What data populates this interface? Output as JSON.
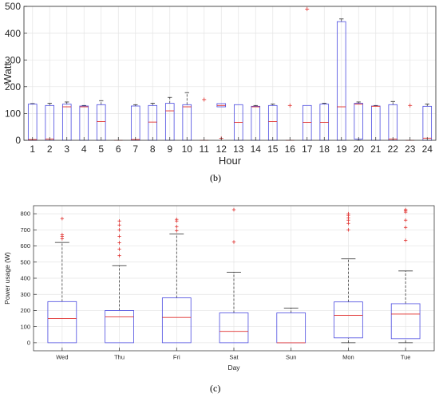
{
  "colors": {
    "box": "#4a4ae0",
    "median": "#e0302e",
    "whisker": "#222222",
    "outlier": "#e0302e",
    "grid": "#e4e4e4",
    "axis": "#262626"
  },
  "panel_b": {
    "label": "(b)"
  },
  "panel_c": {
    "label": "(c)"
  },
  "chart_data": [
    {
      "type": "box",
      "xlabel": "Hour",
      "ylabel": "Watt",
      "ylim": [
        0,
        500
      ],
      "yticks": [
        0,
        100,
        200,
        300,
        400,
        500
      ],
      "grid": true,
      "categories": [
        "1",
        "2",
        "3",
        "4",
        "5",
        "6",
        "7",
        "8",
        "9",
        "10",
        "11",
        "12",
        "13",
        "14",
        "15",
        "16",
        "17",
        "18",
        "19",
        "20",
        "21",
        "22",
        "23",
        "24"
      ],
      "boxes": [
        {
          "q1": 0,
          "median": 3,
          "q3": 135,
          "whisker_low": 0,
          "whisker_high": 137,
          "outliers": []
        },
        {
          "q1": 0,
          "median": 5,
          "q3": 130,
          "whisker_low": 0,
          "whisker_high": 138,
          "outliers": []
        },
        {
          "q1": 0,
          "median": 125,
          "q3": 135,
          "whisker_low": 0,
          "whisker_high": 143,
          "outliers": []
        },
        {
          "q1": 0,
          "median": 125,
          "q3": 128,
          "whisker_low": 0,
          "whisker_high": 130,
          "outliers": []
        },
        {
          "q1": 0,
          "median": 70,
          "q3": 133,
          "whisker_low": 0,
          "whisker_high": 148,
          "outliers": []
        },
        {
          "q1": 0,
          "median": 0,
          "q3": 0,
          "whisker_low": 0,
          "whisker_high": 0,
          "outliers": []
        },
        {
          "q1": 0,
          "median": 3,
          "q3": 128,
          "whisker_low": 0,
          "whisker_high": 133,
          "outliers": []
        },
        {
          "q1": 0,
          "median": 68,
          "q3": 130,
          "whisker_low": 0,
          "whisker_high": 138,
          "outliers": []
        },
        {
          "q1": 0,
          "median": 110,
          "q3": 138,
          "whisker_low": 0,
          "whisker_high": 160,
          "outliers": []
        },
        {
          "q1": 0,
          "median": 125,
          "q3": 133,
          "whisker_low": 0,
          "whisker_high": 178,
          "outliers": []
        },
        {
          "q1": 0,
          "median": 0,
          "q3": 0,
          "whisker_low": 0,
          "whisker_high": 0,
          "outliers": [
            152
          ]
        },
        {
          "q1": 125,
          "median": 130,
          "q3": 137,
          "whisker_low": 125,
          "whisker_high": 137,
          "outliers": [
            7
          ]
        },
        {
          "q1": 0,
          "median": 67,
          "q3": 133,
          "whisker_low": 0,
          "whisker_high": 133,
          "outliers": []
        },
        {
          "q1": 0,
          "median": 125,
          "q3": 127,
          "whisker_low": 0,
          "whisker_high": 130,
          "outliers": []
        },
        {
          "q1": 0,
          "median": 70,
          "q3": 130,
          "whisker_low": 0,
          "whisker_high": 135,
          "outliers": []
        },
        {
          "q1": 0,
          "median": 0,
          "q3": 0,
          "whisker_low": 0,
          "whisker_high": 0,
          "outliers": [
            130
          ]
        },
        {
          "q1": 0,
          "median": 67,
          "q3": 130,
          "whisker_low": 0,
          "whisker_high": 130,
          "outliers": [
            490
          ]
        },
        {
          "q1": 0,
          "median": 67,
          "q3": 135,
          "whisker_low": 0,
          "whisker_high": 138,
          "outliers": []
        },
        {
          "q1": 0,
          "median": 125,
          "q3": 443,
          "whisker_low": 0,
          "whisker_high": 453,
          "outliers": []
        },
        {
          "q1": 5,
          "median": 135,
          "q3": 138,
          "whisker_low": 0,
          "whisker_high": 143,
          "outliers": []
        },
        {
          "q1": 0,
          "median": 127,
          "q3": 128,
          "whisker_low": 0,
          "whisker_high": 130,
          "outliers": []
        },
        {
          "q1": 0,
          "median": 5,
          "q3": 133,
          "whisker_low": 0,
          "whisker_high": 145,
          "outliers": []
        },
        {
          "q1": 0,
          "median": 0,
          "q3": 0,
          "whisker_low": 0,
          "whisker_high": 0,
          "outliers": [
            130
          ]
        },
        {
          "q1": 0,
          "median": 8,
          "q3": 127,
          "whisker_low": 0,
          "whisker_high": 135,
          "outliers": []
        }
      ]
    },
    {
      "type": "box",
      "xlabel": "Day",
      "ylabel": "Power usage (W)",
      "ylim": [
        -50,
        850
      ],
      "yticks": [
        0,
        100,
        200,
        300,
        400,
        500,
        600,
        700,
        800
      ],
      "grid": true,
      "categories": [
        "Wed",
        "Thu",
        "Fri",
        "Sat",
        "Sun",
        "Mon",
        "Tue"
      ],
      "boxes": [
        {
          "q1": 0,
          "median": 150,
          "q3": 255,
          "whisker_low": 0,
          "whisker_high": 622,
          "outliers": [
            645,
            660,
            670,
            770
          ]
        },
        {
          "q1": 0,
          "median": 160,
          "q3": 200,
          "whisker_low": 0,
          "whisker_high": 478,
          "outliers": [
            540,
            580,
            620,
            660,
            700,
            730,
            755
          ]
        },
        {
          "q1": 0,
          "median": 157,
          "q3": 278,
          "whisker_low": 0,
          "whisker_high": 675,
          "outliers": [
            695,
            720,
            755,
            765
          ]
        },
        {
          "q1": 0,
          "median": 70,
          "q3": 185,
          "whisker_low": 0,
          "whisker_high": 437,
          "outliers": [
            625,
            825
          ]
        },
        {
          "q1": 0,
          "median": 0,
          "q3": 185,
          "whisker_low": 0,
          "whisker_high": 215,
          "outliers": []
        },
        {
          "q1": 30,
          "median": 170,
          "q3": 253,
          "whisker_low": 0,
          "whisker_high": 520,
          "outliers": [
            700,
            740,
            760,
            775,
            790,
            800
          ]
        },
        {
          "q1": 25,
          "median": 178,
          "q3": 242,
          "whisker_low": 0,
          "whisker_high": 445,
          "outliers": [
            635,
            715,
            760,
            810,
            820,
            825
          ]
        }
      ]
    }
  ]
}
